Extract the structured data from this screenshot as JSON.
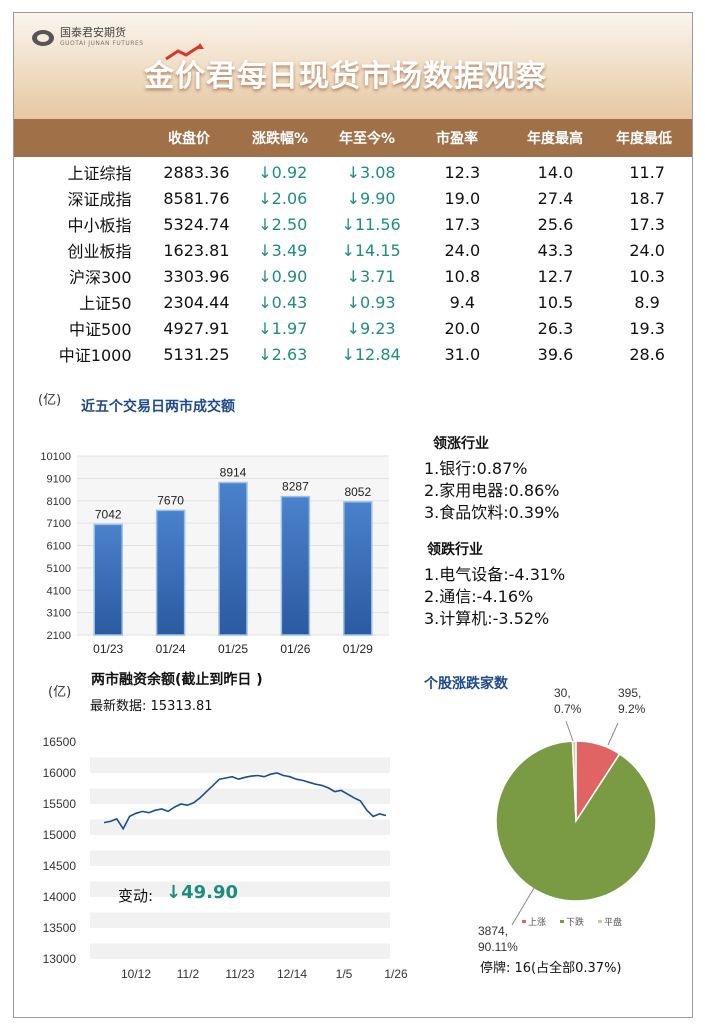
{
  "header": {
    "logo_text": "国泰君安期货",
    "logo_sub": "GUOTAI JUNAN FUTURES",
    "title": "每日现货市场数据观察",
    "title_brand": "金价君"
  },
  "index_table": {
    "columns": [
      "收盘价",
      "涨跌幅%",
      "年至今%",
      "市盈率",
      "年度最高",
      "年度最低"
    ],
    "rows": [
      {
        "name": "上证综指",
        "close": "2883.36",
        "chg": "↓0.92",
        "ytd": "↓3.08",
        "pe": "12.3",
        "high": "14.0",
        "low": "11.7"
      },
      {
        "name": "深证成指",
        "close": "8581.76",
        "chg": "↓2.06",
        "ytd": "↓9.90",
        "pe": "19.0",
        "high": "27.4",
        "low": "18.7"
      },
      {
        "name": "中小板指",
        "close": "5324.74",
        "chg": "↓2.50",
        "ytd": "↓11.56",
        "pe": "17.3",
        "high": "25.6",
        "low": "17.3"
      },
      {
        "name": "创业板指",
        "close": "1623.81",
        "chg": "↓3.49",
        "ytd": "↓14.15",
        "pe": "24.0",
        "high": "43.3",
        "low": "24.0"
      },
      {
        "name": "沪深300",
        "close": "3303.96",
        "chg": "↓0.90",
        "ytd": "↓3.71",
        "pe": "10.8",
        "high": "12.7",
        "low": "10.3"
      },
      {
        "name": "上证50",
        "close": "2304.44",
        "chg": "↓0.43",
        "ytd": "↓0.93",
        "pe": "9.4",
        "high": "10.5",
        "low": "8.9"
      },
      {
        "name": "中证500",
        "close": "4927.91",
        "chg": "↓1.97",
        "ytd": "↓9.23",
        "pe": "20.0",
        "high": "26.3",
        "low": "19.3"
      },
      {
        "name": "中证1000",
        "close": "5131.25",
        "chg": "↓2.63",
        "ytd": "↓12.84",
        "pe": "31.0",
        "high": "39.6",
        "low": "28.6"
      }
    ]
  },
  "volume_section": {
    "unit": "(亿)",
    "title": "近五个交易日两市成交额"
  },
  "industries": {
    "up_title": "领涨行业",
    "up": [
      "1.银行:0.87%",
      "2.家用电器:0.86%",
      "3.食品饮料:0.39%"
    ],
    "down_title": "领跌行业",
    "down": [
      "1.电气设备:-4.31%",
      "2.通信:-4.16%",
      "3.计算机:-3.52%"
    ]
  },
  "margin_section": {
    "unit": "(亿)",
    "title": "两市融资余额(截止到昨日 )",
    "latest_label": "最新数据:",
    "latest_value": "15313.81",
    "change_label": "变动:",
    "change_value": "↓49.90"
  },
  "breadth_section": {
    "title": "个股涨跌家数",
    "suspend_text": "停牌:  16(占全部0.37%)"
  },
  "colors": {
    "header_bar": "#a07048",
    "down_green": "#1e8e7c",
    "section_blue": "#1e4a8a",
    "bar_blue": "#3a6fb8",
    "pie_up": "#e06464",
    "pie_down": "#7a9a44",
    "line": "#1a4f8a"
  },
  "chart_data": [
    {
      "type": "bar",
      "categories": [
        "01/23",
        "01/24",
        "01/25",
        "01/26",
        "01/29"
      ],
      "values": [
        7042,
        7670,
        8914,
        8287,
        8052
      ],
      "ylim": [
        2100,
        10100
      ],
      "yticks": [
        2100,
        3100,
        4100,
        5100,
        6100,
        7100,
        8100,
        9100,
        10100
      ],
      "ylabel": "(亿)",
      "title": "近五个交易日两市成交额"
    },
    {
      "type": "line",
      "x_ticks": [
        "10/12",
        "11/2",
        "11/23",
        "12/14",
        "1/5",
        "1/26"
      ],
      "ylim": [
        13000,
        16500
      ],
      "yticks": [
        13000,
        13500,
        14000,
        14500,
        15000,
        15500,
        16000,
        16500
      ],
      "values": [
        15200,
        15220,
        15260,
        15100,
        15300,
        15350,
        15380,
        15360,
        15400,
        15420,
        15380,
        15450,
        15500,
        15480,
        15520,
        15600,
        15700,
        15800,
        15900,
        15920,
        15940,
        15900,
        15930,
        15950,
        15960,
        15940,
        15980,
        16000,
        15960,
        15940,
        15900,
        15880,
        15850,
        15820,
        15800,
        15760,
        15700,
        15720,
        15660,
        15600,
        15550,
        15400,
        15300,
        15340,
        15313.81
      ],
      "ylabel": "(亿)",
      "title": "两市融资余额(截止到昨日 )"
    },
    {
      "type": "pie",
      "labels": [
        "上涨",
        "下跌",
        "平盘"
      ],
      "values": [
        395,
        3874,
        30
      ],
      "percents": [
        9.2,
        90.11,
        0.7
      ],
      "slice_labels": [
        "395,\n9.2%",
        "3874,\n90.11%",
        "30,\n0.7%"
      ],
      "legend": "bottom",
      "title": "个股涨跌家数"
    }
  ]
}
